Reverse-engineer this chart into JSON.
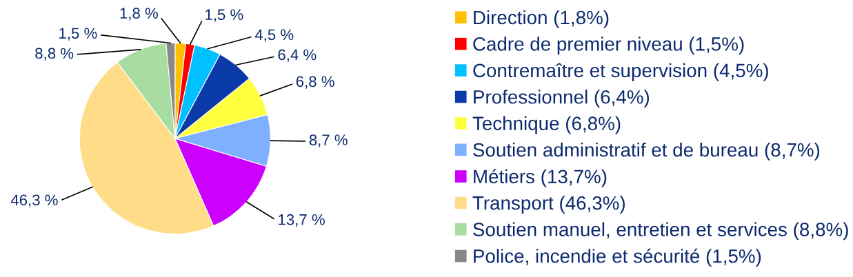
{
  "chart_data": {
    "type": "pie",
    "categories": [
      "Direction (1,8%)",
      "Cadre de premier niveau (1,5%)",
      "Contremaître et supervision (4,5%)",
      "Professionnel (6,4%)",
      "Technique (6,8%)",
      "Soutien administratif et de bureau (8,7%)",
      "Métiers (13,7%)",
      "Transport (46,3%)",
      "Soutien manuel, entretien et services (8,8%)",
      "Police, incendie et sécurité (1,5%)"
    ],
    "values": [
      1.8,
      1.5,
      4.5,
      6.4,
      6.8,
      8.7,
      13.7,
      46.3,
      8.8,
      1.5
    ],
    "colors": [
      "#ffc000",
      "#ff0000",
      "#00c0ff",
      "#0a3aa8",
      "#ffff40",
      "#7fb0ff",
      "#cc00ff",
      "#ffdd88",
      "#a8dca0",
      "#888888"
    ],
    "value_labels": [
      "1,8 %",
      "1,5 %",
      "4,5 %",
      "6,4 %",
      "6,8 %",
      "8,7 %",
      "13,7 %",
      "46,3 %",
      "8,8 %",
      "1,5 %"
    ],
    "legend": "right"
  }
}
